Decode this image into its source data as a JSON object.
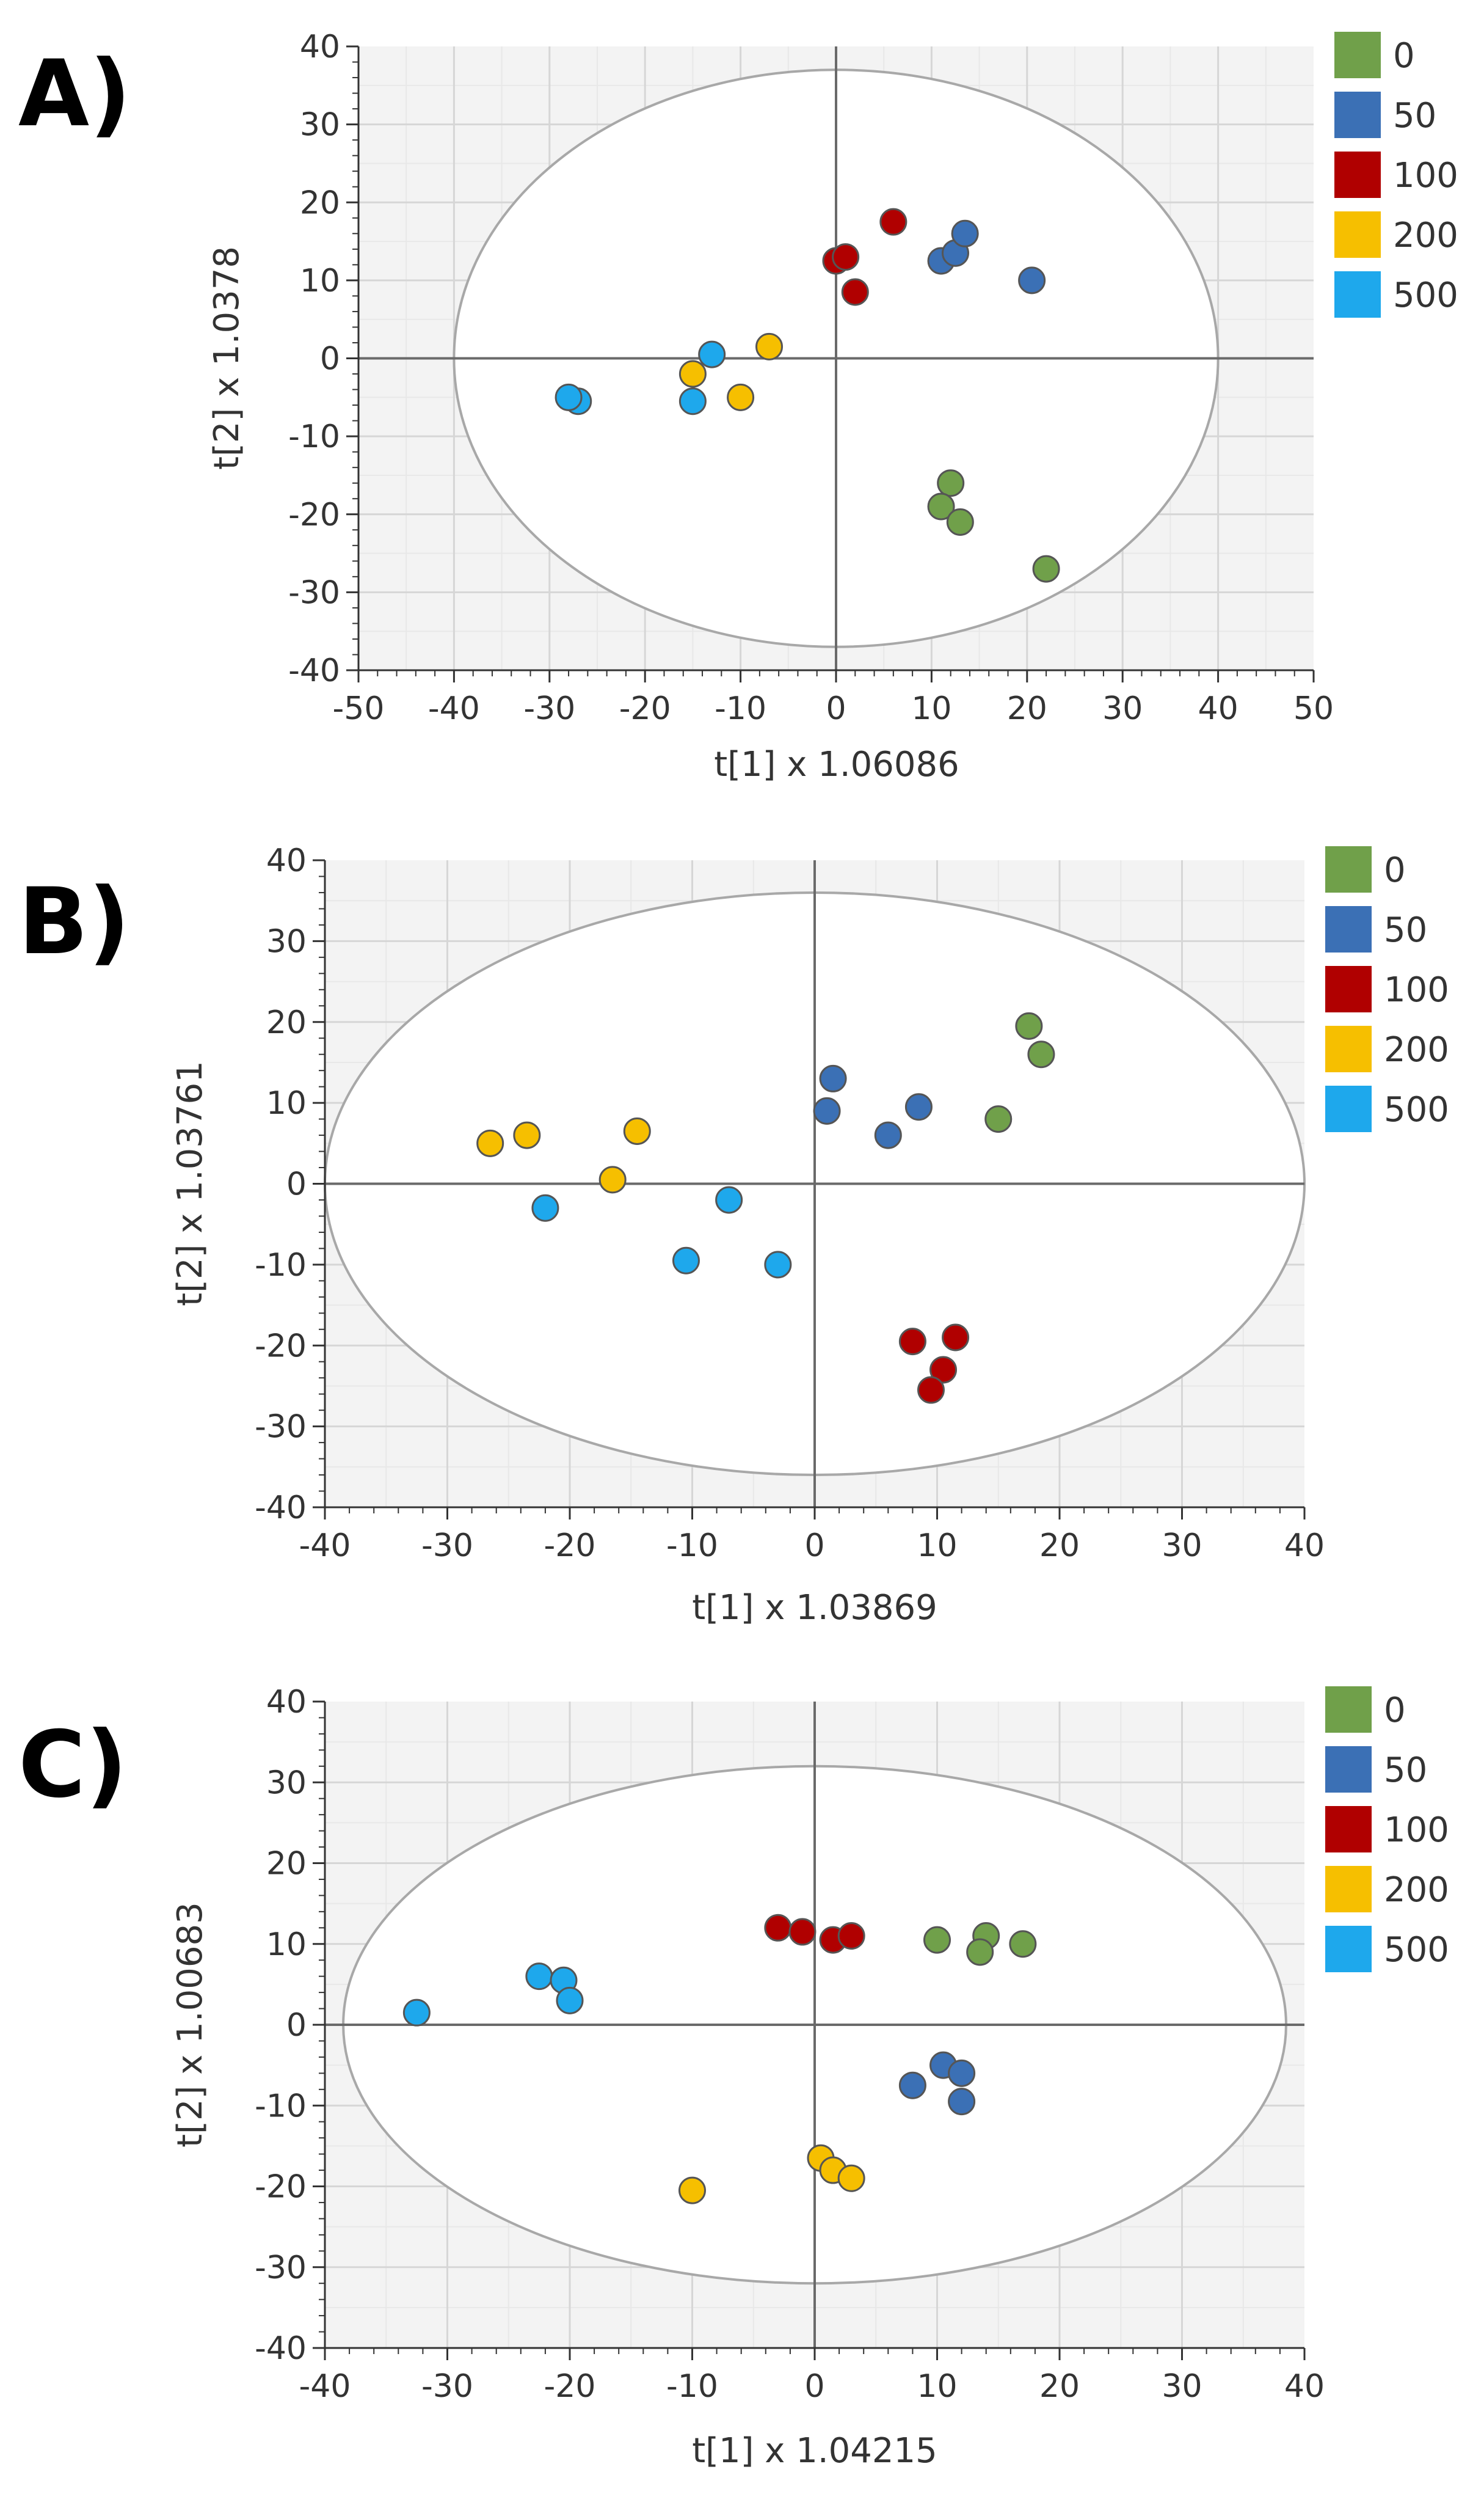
{
  "chart_data": [
    {
      "type": "scatter",
      "panel_label": "A)",
      "xlabel": "t[1] x 1.06086",
      "ylabel": "t[2] x 1.0378",
      "xlim": [
        -50,
        50
      ],
      "ylim": [
        -40,
        40
      ],
      "x_ticks": [
        -50,
        -40,
        -30,
        -20,
        -10,
        0,
        10,
        20,
        30,
        40,
        50
      ],
      "y_ticks": [
        -40,
        -30,
        -20,
        -10,
        0,
        10,
        20,
        30,
        40
      ],
      "grid": true,
      "ellipse": {
        "rx": 40,
        "ry": 37
      },
      "legend_position": "right",
      "series": [
        {
          "name": "0",
          "color": "#70a04a",
          "points": [
            [
              12,
              -16
            ],
            [
              11,
              -19
            ],
            [
              13,
              -21
            ],
            [
              22,
              -27
            ]
          ]
        },
        {
          "name": "50",
          "color": "#3b70b5",
          "points": [
            [
              11,
              12.5
            ],
            [
              12.5,
              13.5
            ],
            [
              13.5,
              16
            ],
            [
              20.5,
              10
            ]
          ]
        },
        {
          "name": "100",
          "color": "#b00000",
          "points": [
            [
              6,
              17.5
            ],
            [
              0,
              12.5
            ],
            [
              1,
              13
            ],
            [
              2,
              8.5
            ]
          ]
        },
        {
          "name": "200",
          "color": "#f6bf00",
          "points": [
            [
              -7,
              1.5
            ],
            [
              -15,
              -2
            ],
            [
              -10,
              -5
            ]
          ]
        },
        {
          "name": "500",
          "color": "#1ea8ec",
          "points": [
            [
              -13,
              0.5
            ],
            [
              -15,
              -5.5
            ],
            [
              -27,
              -5.5
            ],
            [
              -28,
              -5
            ]
          ]
        }
      ]
    },
    {
      "type": "scatter",
      "panel_label": "B)",
      "xlabel": "t[1] x 1.03869",
      "ylabel": "t[2] x 1.03761",
      "xlim": [
        -40,
        40
      ],
      "ylim": [
        -40,
        40
      ],
      "x_ticks": [
        -40,
        -30,
        -20,
        -10,
        0,
        10,
        20,
        30,
        40
      ],
      "y_ticks": [
        -40,
        -30,
        -20,
        -10,
        0,
        10,
        20,
        30,
        40
      ],
      "grid": true,
      "ellipse": {
        "rx": 40,
        "ry": 36
      },
      "legend_position": "right",
      "series": [
        {
          "name": "0",
          "color": "#70a04a",
          "points": [
            [
              17.5,
              19.5
            ],
            [
              18.5,
              16
            ],
            [
              15,
              8
            ]
          ]
        },
        {
          "name": "50",
          "color": "#3b70b5",
          "points": [
            [
              1.5,
              13
            ],
            [
              1,
              9
            ],
            [
              8.5,
              9.5
            ],
            [
              6,
              6
            ]
          ]
        },
        {
          "name": "100",
          "color": "#b00000",
          "points": [
            [
              8,
              -19.5
            ],
            [
              11.5,
              -19
            ],
            [
              10.5,
              -23
            ],
            [
              9.5,
              -25.5
            ]
          ]
        },
        {
          "name": "200",
          "color": "#f6bf00",
          "points": [
            [
              -26.5,
              5
            ],
            [
              -23.5,
              6
            ],
            [
              -14.5,
              6.5
            ],
            [
              -16.5,
              0.5
            ]
          ]
        },
        {
          "name": "500",
          "color": "#1ea8ec",
          "points": [
            [
              -22,
              -3
            ],
            [
              -7,
              -2
            ],
            [
              -10.5,
              -9.5
            ],
            [
              -3,
              -10
            ]
          ]
        }
      ]
    },
    {
      "type": "scatter",
      "panel_label": "C)",
      "xlabel": "t[1] x 1.04215",
      "ylabel": "t[2] x 1.00683",
      "xlim": [
        -40,
        40
      ],
      "ylim": [
        -40,
        40
      ],
      "x_ticks": [
        -40,
        -30,
        -20,
        -10,
        0,
        10,
        20,
        30,
        40
      ],
      "y_ticks": [
        -40,
        -30,
        -20,
        -10,
        0,
        10,
        20,
        30,
        40
      ],
      "grid": true,
      "ellipse": {
        "rx": 38.5,
        "ry": 32
      },
      "legend_position": "right",
      "series": [
        {
          "name": "0",
          "color": "#70a04a",
          "points": [
            [
              10,
              10.5
            ],
            [
              14,
              11
            ],
            [
              13.5,
              9
            ],
            [
              17,
              10
            ]
          ]
        },
        {
          "name": "50",
          "color": "#3b70b5",
          "points": [
            [
              8,
              -7.5
            ],
            [
              10.5,
              -5
            ],
            [
              12,
              -6
            ],
            [
              12,
              -9.5
            ]
          ]
        },
        {
          "name": "100",
          "color": "#b00000",
          "points": [
            [
              -3,
              12
            ],
            [
              -1,
              11.5
            ],
            [
              1.5,
              10.5
            ],
            [
              3,
              11
            ]
          ]
        },
        {
          "name": "200",
          "color": "#f6bf00",
          "points": [
            [
              0.5,
              -16.5
            ],
            [
              1.5,
              -18
            ],
            [
              3,
              -19
            ],
            [
              -10,
              -20.5
            ]
          ]
        },
        {
          "name": "500",
          "color": "#1ea8ec",
          "points": [
            [
              -22.5,
              6
            ],
            [
              -20.5,
              5.5
            ],
            [
              -20,
              3
            ],
            [
              -32.5,
              1.5
            ]
          ]
        }
      ]
    }
  ]
}
